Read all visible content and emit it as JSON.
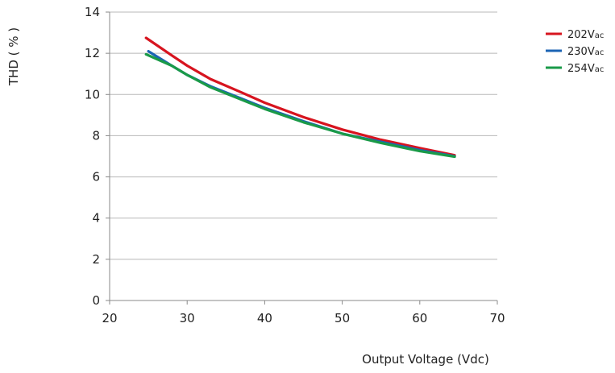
{
  "chart_data": {
    "type": "line",
    "xlabel": "Output Voltage (Vdc)",
    "ylabel": "THD ( % )",
    "xlim": [
      20,
      70
    ],
    "ylim": [
      0,
      14
    ],
    "xticks": [
      20,
      30,
      40,
      50,
      60,
      70
    ],
    "yticks": [
      0,
      2,
      4,
      6,
      8,
      10,
      12,
      14
    ],
    "grid": "horizontal",
    "legend": "top-right",
    "series": [
      {
        "name": "202V",
        "name_subscript": "ac",
        "color": "#d7141f",
        "x": [
          24.7,
          28,
          30,
          33,
          37,
          40,
          45,
          50,
          55,
          60,
          64.5
        ],
        "y": [
          12.75,
          11.9,
          11.4,
          10.75,
          10.1,
          9.6,
          8.9,
          8.3,
          7.8,
          7.4,
          7.05
        ]
      },
      {
        "name": "230V",
        "name_subscript": "ac",
        "color": "#1c64b4",
        "x": [
          25,
          28,
          30,
          33,
          37,
          40,
          45,
          50,
          55,
          60,
          64.5
        ],
        "y": [
          12.1,
          11.4,
          10.95,
          10.4,
          9.8,
          9.35,
          8.7,
          8.1,
          7.7,
          7.3,
          7.0
        ]
      },
      {
        "name": "254V",
        "name_subscript": "ac",
        "color": "#1a9a48",
        "x": [
          24.7,
          28,
          30,
          33,
          37,
          40,
          45,
          50,
          55,
          60,
          64.5
        ],
        "y": [
          11.95,
          11.4,
          10.95,
          10.35,
          9.75,
          9.3,
          8.65,
          8.1,
          7.65,
          7.25,
          6.98
        ]
      }
    ]
  }
}
